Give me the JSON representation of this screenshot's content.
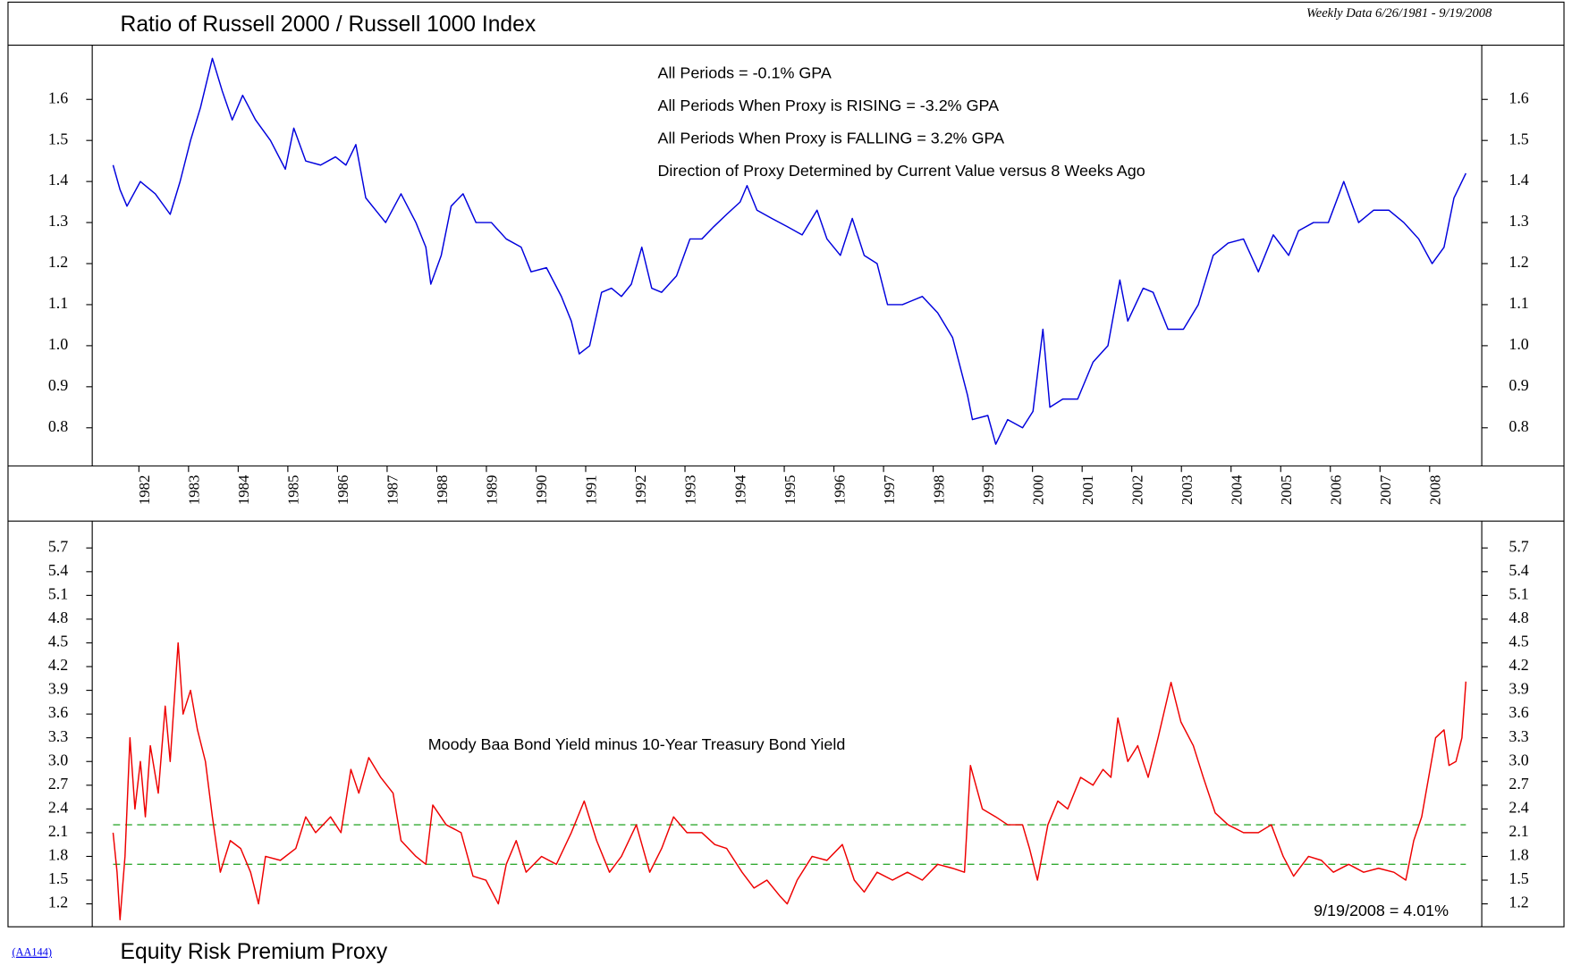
{
  "page": {
    "subtitle": "Weekly Data 6/26/1981 - 9/19/2008",
    "code": "(AA144)"
  },
  "chart_data": [
    {
      "type": "line",
      "title": "Ratio of Russell 2000 / Russell 1000 Index",
      "annotations": [
        "All Periods = -0.1% GPA",
        "All Periods When Proxy is RISING = -3.2% GPA",
        "All Periods When Proxy is FALLING = 3.2% GPA",
        "Direction of Proxy Determined by Current Value versus 8 Weeks Ago"
      ],
      "xlim": [
        1981.06,
        2009.05
      ],
      "xticks": [
        1982,
        1983,
        1984,
        1985,
        1986,
        1987,
        1988,
        1989,
        1990,
        1991,
        1992,
        1993,
        1994,
        1995,
        1996,
        1997,
        1998,
        1999,
        2000,
        2001,
        2002,
        2003,
        2004,
        2005,
        2006,
        2007,
        2008
      ],
      "ylim": [
        0.707,
        1.732
      ],
      "yticks": [
        0.8,
        0.9,
        {
          "value": 1,
          "label": "1.0"
        },
        1.1,
        1.2,
        1.3,
        1.4,
        1.5,
        1.6
      ],
      "x": [
        1981.48,
        1981.62,
        1981.76,
        1982.03,
        1982.33,
        1982.63,
        1982.83,
        1983.04,
        1983.24,
        1983.48,
        1983.68,
        1983.88,
        1984.09,
        1984.35,
        1984.65,
        1984.95,
        1985.12,
        1985.36,
        1985.66,
        1985.96,
        1986.17,
        1986.37,
        1986.57,
        1986.77,
        1986.97,
        1987.28,
        1987.58,
        1987.78,
        1987.88,
        1988.09,
        1988.29,
        1988.53,
        1988.79,
        1989.1,
        1989.4,
        1989.7,
        1989.9,
        1990.21,
        1990.51,
        1990.71,
        1990.87,
        1991.08,
        1991.32,
        1991.52,
        1991.72,
        1991.92,
        1992.13,
        1992.33,
        1992.53,
        1992.83,
        1993.1,
        1993.34,
        1993.58,
        1993.84,
        1994.11,
        1994.25,
        1994.45,
        1994.75,
        1995.06,
        1995.36,
        1995.66,
        1995.86,
        1996.13,
        1996.37,
        1996.61,
        1996.87,
        1997.08,
        1997.38,
        1997.78,
        1998.09,
        1998.39,
        1998.69,
        1998.79,
        1999.1,
        1999.26,
        1999.5,
        1999.8,
        2000.01,
        2000.21,
        2000.35,
        2000.61,
        2000.91,
        2001.22,
        2001.52,
        2001.76,
        2001.92,
        2002.23,
        2002.43,
        2002.73,
        2003.04,
        2003.34,
        2003.64,
        2003.94,
        2004.25,
        2004.55,
        2004.85,
        2005.16,
        2005.36,
        2005.66,
        2005.96,
        2006.27,
        2006.57,
        2006.87,
        2007.18,
        2007.48,
        2007.78,
        2008.05,
        2008.29,
        2008.49,
        2008.73
      ],
      "series": [
        {
          "color": "#0000dd",
          "values": [
            1.44,
            1.38,
            1.34,
            1.4,
            1.37,
            1.32,
            1.4,
            1.5,
            1.58,
            1.7,
            1.62,
            1.55,
            1.61,
            1.55,
            1.5,
            1.43,
            1.53,
            1.45,
            1.44,
            1.46,
            1.44,
            1.49,
            1.36,
            1.33,
            1.3,
            1.37,
            1.3,
            1.24,
            1.15,
            1.22,
            1.34,
            1.37,
            1.3,
            1.3,
            1.26,
            1.24,
            1.18,
            1.19,
            1.12,
            1.06,
            0.98,
            1.0,
            1.13,
            1.14,
            1.12,
            1.15,
            1.24,
            1.14,
            1.13,
            1.17,
            1.26,
            1.26,
            1.29,
            1.32,
            1.35,
            1.39,
            1.33,
            1.31,
            1.29,
            1.27,
            1.33,
            1.26,
            1.22,
            1.31,
            1.22,
            1.2,
            1.1,
            1.1,
            1.12,
            1.08,
            1.02,
            0.88,
            0.82,
            0.83,
            0.76,
            0.82,
            0.8,
            0.84,
            1.04,
            0.85,
            0.87,
            0.87,
            0.96,
            1.0,
            1.16,
            1.06,
            1.14,
            1.13,
            1.04,
            1.04,
            1.1,
            1.22,
            1.25,
            1.26,
            1.18,
            1.27,
            1.22,
            1.28,
            1.3,
            1.3,
            1.4,
            1.3,
            1.33,
            1.33,
            1.3,
            1.26,
            1.2,
            1.24,
            1.36,
            1.42
          ]
        }
      ]
    },
    {
      "type": "line",
      "title": "Equity Risk Premium Proxy",
      "annotations": [
        "9/19/2008 = 4.01%"
      ],
      "xlim": [
        1981.06,
        2009.05
      ],
      "ylim": [
        0.91,
        6.04
      ],
      "yticks": [
        1.2,
        1.5,
        1.8,
        2.1,
        2.4,
        2.7,
        {
          "value": 3,
          "label": "3.0"
        },
        3.3,
        3.6,
        3.9,
        4.2,
        4.5,
        4.8,
        5.1,
        5.4,
        5.7
      ],
      "reference_lines": [
        {
          "value": 2.2,
          "color": "#33aa33"
        },
        {
          "value": 1.7,
          "color": "#33aa33"
        }
      ],
      "x": [
        1981.48,
        1981.56,
        1981.62,
        1981.72,
        1981.82,
        1981.92,
        1982.03,
        1982.13,
        1982.23,
        1982.39,
        1982.53,
        1982.63,
        1982.79,
        1982.89,
        1983.04,
        1983.18,
        1983.34,
        1983.48,
        1983.64,
        1983.84,
        1984.05,
        1984.25,
        1984.41,
        1984.55,
        1984.85,
        1985.16,
        1985.36,
        1985.56,
        1985.86,
        1986.07,
        1986.27,
        1986.43,
        1986.63,
        1986.87,
        1987.12,
        1987.28,
        1987.58,
        1987.78,
        1987.92,
        1988.19,
        1988.49,
        1988.73,
        1988.99,
        1989.24,
        1989.4,
        1989.6,
        1989.8,
        1990.11,
        1990.41,
        1990.71,
        1990.97,
        1991.22,
        1991.48,
        1991.72,
        1992.02,
        1992.29,
        1992.53,
        1992.77,
        1993.04,
        1993.34,
        1993.6,
        1993.84,
        1994.15,
        1994.39,
        1994.65,
        1994.91,
        1995.06,
        1995.26,
        1995.56,
        1995.86,
        1996.17,
        1996.41,
        1996.61,
        1996.87,
        1997.18,
        1997.48,
        1997.78,
        1998.09,
        1998.39,
        1998.63,
        1998.75,
        1998.99,
        1999.26,
        1999.5,
        1999.8,
        1999.94,
        2000.1,
        2000.31,
        2000.51,
        2000.71,
        2000.97,
        2001.22,
        2001.42,
        2001.58,
        2001.72,
        2001.92,
        2002.12,
        2002.33,
        2002.53,
        2002.79,
        2002.99,
        2003.24,
        2003.44,
        2003.68,
        2003.94,
        2004.25,
        2004.55,
        2004.81,
        2005.05,
        2005.26,
        2005.56,
        2005.82,
        2006.06,
        2006.37,
        2006.67,
        2006.97,
        2007.28,
        2007.52,
        2007.68,
        2007.84,
        2007.98,
        2008.12,
        2008.29,
        2008.39,
        2008.53,
        2008.65,
        2008.73
      ],
      "series": [
        {
          "name": "Moody Baa Bond Yield minus 10-Year Treasury Bond Yield",
          "color": "#ee0000",
          "values": [
            2.1,
            1.6,
            1.0,
            1.8,
            3.3,
            2.4,
            3.0,
            2.3,
            3.2,
            2.6,
            3.7,
            3.0,
            4.5,
            3.6,
            3.9,
            3.4,
            3.0,
            2.3,
            1.6,
            2.0,
            1.9,
            1.6,
            1.2,
            1.8,
            1.75,
            1.9,
            2.3,
            2.1,
            2.3,
            2.1,
            2.9,
            2.6,
            3.05,
            2.8,
            2.6,
            2.0,
            1.8,
            1.7,
            2.45,
            2.2,
            2.1,
            1.55,
            1.5,
            1.2,
            1.7,
            2.0,
            1.6,
            1.8,
            1.7,
            2.1,
            2.5,
            2.0,
            1.6,
            1.8,
            2.2,
            1.6,
            1.9,
            2.3,
            2.1,
            2.1,
            1.95,
            1.9,
            1.6,
            1.4,
            1.5,
            1.3,
            1.2,
            1.5,
            1.8,
            1.75,
            1.95,
            1.5,
            1.35,
            1.6,
            1.5,
            1.6,
            1.5,
            1.7,
            1.65,
            1.6,
            2.95,
            2.4,
            2.3,
            2.2,
            2.2,
            1.9,
            1.5,
            2.2,
            2.5,
            2.4,
            2.8,
            2.7,
            2.9,
            2.8,
            3.55,
            3.0,
            3.2,
            2.8,
            3.3,
            4.0,
            3.5,
            3.2,
            2.8,
            2.35,
            2.2,
            2.1,
            2.1,
            2.2,
            1.8,
            1.55,
            1.8,
            1.75,
            1.6,
            1.7,
            1.6,
            1.65,
            1.6,
            1.5,
            2.0,
            2.3,
            2.8,
            3.3,
            3.4,
            2.95,
            3.0,
            3.3,
            4.01
          ]
        }
      ]
    }
  ]
}
